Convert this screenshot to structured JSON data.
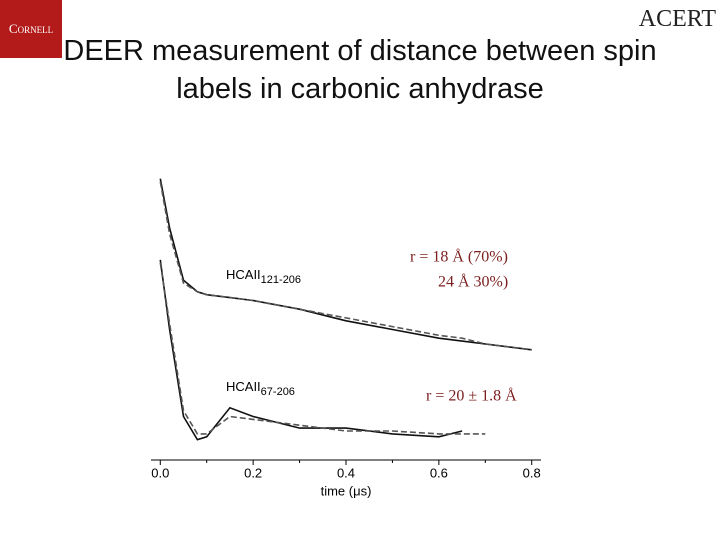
{
  "slide_title": "DEER measurement of distance between spin labels in carbonic anhydrase",
  "logos": [
    "Cornell",
    "ACERT"
  ],
  "chart_data": {
    "type": "line",
    "x_label": "time (μs)",
    "x": [
      0,
      0.02,
      0.05,
      0.08,
      0.1,
      0.15,
      0.2,
      0.3,
      0.4,
      0.5,
      0.6,
      0.65,
      0.7,
      0.8
    ],
    "series": [
      {
        "name": "HCAII 121-206 data",
        "color": "#111111",
        "dash": false,
        "values": [
          0.97,
          0.8,
          0.62,
          0.58,
          0.57,
          0.56,
          0.55,
          0.52,
          0.48,
          0.45,
          0.42,
          0.41,
          0.4,
          0.38
        ]
      },
      {
        "name": "HCAII 121-206 fit",
        "color": "#555555",
        "dash": true,
        "values": [
          0.96,
          0.78,
          0.61,
          0.58,
          0.57,
          0.56,
          0.55,
          0.52,
          0.49,
          0.46,
          0.43,
          0.42,
          0.4,
          0.38
        ]
      },
      {
        "name": "HCAII 67-206 data",
        "color": "#111111",
        "dash": false,
        "values": [
          0.69,
          0.45,
          0.15,
          0.07,
          0.08,
          0.18,
          0.15,
          0.11,
          0.11,
          0.09,
          0.08,
          0.1,
          null,
          null
        ]
      },
      {
        "name": "HCAII 67-206 fit",
        "color": "#555555",
        "dash": true,
        "values": [
          0.68,
          0.47,
          0.17,
          0.09,
          0.09,
          0.15,
          0.14,
          0.12,
          0.1,
          0.1,
          0.09,
          0.09,
          0.09,
          null
        ]
      }
    ],
    "xlim": [
      -0.02,
      0.82
    ],
    "ylim": [
      0,
      1
    ],
    "xticks": [
      {
        "value": 0,
        "label": "0.0"
      },
      {
        "value": 0.2,
        "label": "0.2"
      },
      {
        "value": 0.4,
        "label": "0.4"
      },
      {
        "value": 0.6,
        "label": "0.6"
      },
      {
        "value": 0.8,
        "label": "0.8"
      }
    ],
    "curve_labels": [
      {
        "text": "HCAII",
        "sub": "121-206"
      },
      {
        "text": "HCAII",
        "sub": "67-206"
      }
    ],
    "annotations": [
      "r = 18 Å (70%)",
      "24 Å 30%)",
      "r = 20 ± 1.8 Å"
    ]
  }
}
